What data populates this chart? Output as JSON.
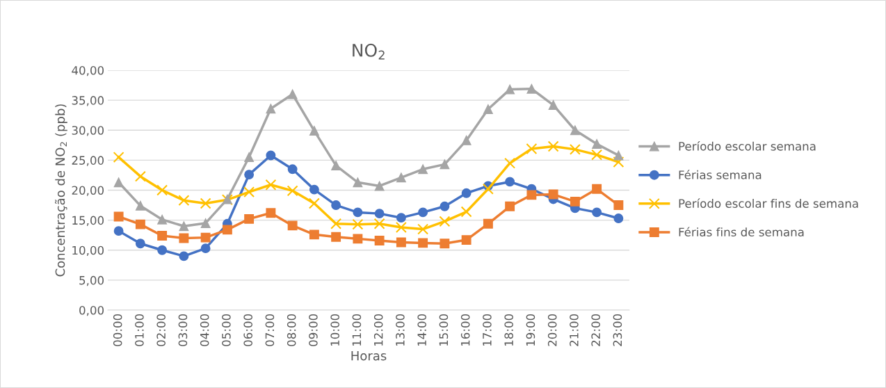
{
  "chart_data": {
    "type": "line",
    "title": "NO$_{2}$",
    "xlabel": "Horas",
    "ylabel": "Concentração de NO$_{2}$ (ppb)",
    "categories": [
      "00:00",
      "01:00",
      "02:00",
      "03:00",
      "04:00",
      "05:00",
      "06:00",
      "07:00",
      "08:00",
      "09:00",
      "10:00",
      "11:00",
      "12:00",
      "13:00",
      "14:00",
      "15:00",
      "16:00",
      "17:00",
      "18:00",
      "19:00",
      "20:00",
      "21:00",
      "22:00",
      "23:00"
    ],
    "series": [
      {
        "name": "Período escolar semana",
        "color": "#a5a5a5",
        "marker": "triangle",
        "values": [
          21.3,
          17.4,
          15.1,
          14.0,
          14.5,
          18.5,
          25.5,
          33.6,
          36.0,
          29.9,
          24.1,
          21.3,
          20.7,
          22.1,
          23.5,
          24.3,
          28.3,
          33.5,
          36.8,
          36.9,
          34.2,
          30.0,
          27.7,
          25.8
        ]
      },
      {
        "name": "Férias semana",
        "color": "#4472c4",
        "marker": "circle",
        "values": [
          13.2,
          11.1,
          10.0,
          9.0,
          10.3,
          14.4,
          22.6,
          25.8,
          23.5,
          20.1,
          17.5,
          16.3,
          16.1,
          15.4,
          16.3,
          17.3,
          19.5,
          20.7,
          21.4,
          20.2,
          18.5,
          17.0,
          16.3,
          15.3
        ]
      },
      {
        "name": "Período escolar fins de semana",
        "color": "#ffc000",
        "marker": "cross",
        "values": [
          25.5,
          22.3,
          20.0,
          18.3,
          17.8,
          18.4,
          19.7,
          20.9,
          19.9,
          17.8,
          14.4,
          14.3,
          14.4,
          13.8,
          13.5,
          14.8,
          16.4,
          20.2,
          24.5,
          26.9,
          27.3,
          26.8,
          25.9,
          24.7
        ]
      },
      {
        "name": "Férias fins de semana",
        "color": "#ed7d31",
        "marker": "square",
        "values": [
          15.6,
          14.3,
          12.4,
          12.0,
          12.1,
          13.4,
          15.2,
          16.2,
          14.1,
          12.6,
          12.2,
          11.9,
          11.6,
          11.3,
          11.2,
          11.1,
          11.7,
          14.4,
          17.3,
          19.2,
          19.3,
          18.1,
          20.2,
          17.5
        ]
      }
    ],
    "ylim": [
      0,
      40
    ],
    "yticks": [
      {
        "value": 0,
        "label": "0,00"
      },
      {
        "value": 5,
        "label": "5,00"
      },
      {
        "value": 10,
        "label": "10,00"
      },
      {
        "value": 15,
        "label": "15,00"
      },
      {
        "value": 20,
        "label": "20,00"
      },
      {
        "value": 25,
        "label": "25,00"
      },
      {
        "value": 30,
        "label": "30,00"
      },
      {
        "value": 35,
        "label": "35,00"
      },
      {
        "value": 40,
        "label": "40,00"
      }
    ],
    "grid": "y",
    "legend": "right"
  }
}
